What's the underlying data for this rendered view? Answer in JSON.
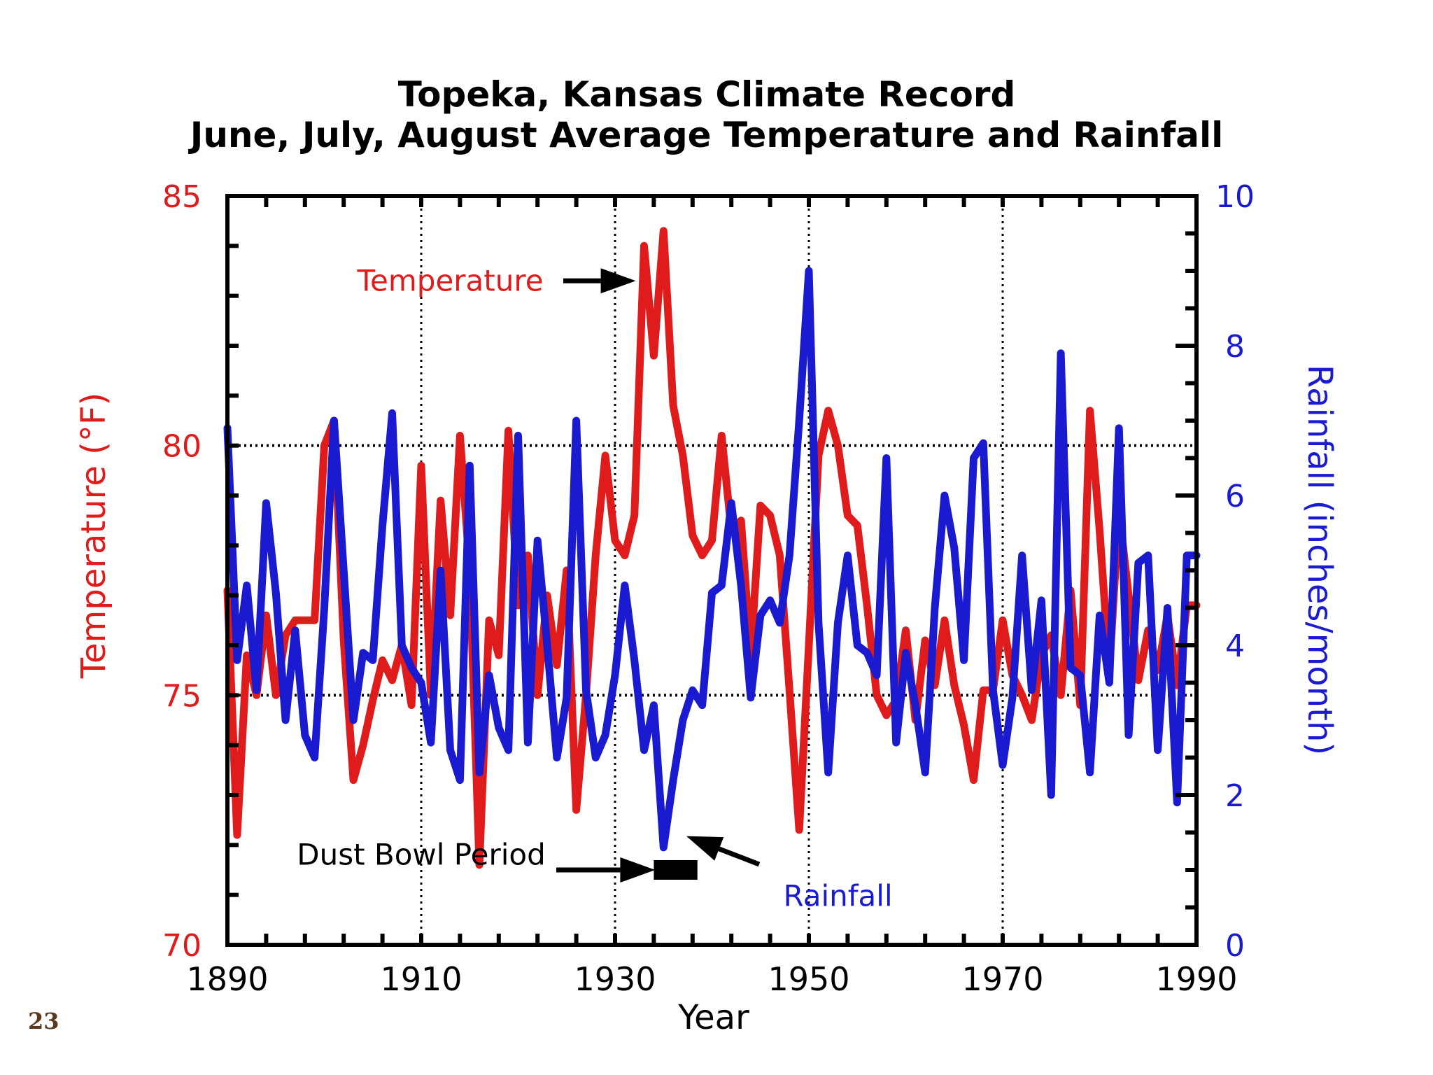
{
  "page": {
    "slide_number": "23"
  },
  "colors": {
    "temperature": "#e01b1b",
    "rainfall": "#1a1ad0",
    "axis": "#000000",
    "annotation": "#000000"
  },
  "chart_data": {
    "type": "line",
    "title": "Topeka, Kansas Climate Record",
    "subtitle": "June, July, August Average Temperature and Rainfall",
    "xlabel": "Year",
    "ylabel_left": "Temperature (°F)",
    "ylabel_right": "Rainfall (inches/month)",
    "xlim": [
      1890,
      1990
    ],
    "ylim_left": [
      70,
      85
    ],
    "ylim_right": [
      0,
      10
    ],
    "x_ticks": [
      "1890",
      "1910",
      "1930",
      "1950",
      "1970",
      "1990"
    ],
    "y_ticks_left": [
      "70",
      "75",
      "80",
      "85"
    ],
    "y_ticks_right": [
      "0",
      "2",
      "4",
      "6",
      "8",
      "10"
    ],
    "grid": "dotted at major ticks",
    "annotations": [
      {
        "text": "Temperature",
        "x": 1913,
        "y_temp": 83.3,
        "arrow_to": [
          1932.5,
          83.3
        ]
      },
      {
        "text": "Rainfall",
        "x": 1953,
        "y_rain": 0.65,
        "arrow_to": [
          1936.5,
          1.45
        ]
      },
      {
        "text": "Dust Bowl Period",
        "x": 1910,
        "y_temp": 71.8,
        "arrow_to": [
          1934,
          71.5
        ],
        "bar": [
          1934,
          1938.5
        ]
      }
    ],
    "series": [
      {
        "name": "Temperature",
        "axis": "left",
        "x": [
          1890,
          1891,
          1892,
          1893,
          1894,
          1895,
          1896,
          1897,
          1898,
          1899,
          1900,
          1901,
          1902,
          1903,
          1904,
          1905,
          1906,
          1907,
          1908,
          1909,
          1910,
          1911,
          1912,
          1913,
          1914,
          1915,
          1916,
          1917,
          1918,
          1919,
          1920,
          1921,
          1922,
          1923,
          1924,
          1925,
          1926,
          1927,
          1928,
          1929,
          1930,
          1931,
          1932,
          1933,
          1934,
          1935,
          1936,
          1937,
          1938,
          1939,
          1940,
          1941,
          1942,
          1943,
          1944,
          1945,
          1946,
          1947,
          1948,
          1949,
          1950,
          1951,
          1952,
          1953,
          1954,
          1955,
          1956,
          1957,
          1958,
          1959,
          1960,
          1961,
          1962,
          1963,
          1964,
          1965,
          1966,
          1967,
          1968,
          1969,
          1970,
          1971,
          1972,
          1973,
          1974,
          1975,
          1976,
          1977,
          1978,
          1979,
          1980,
          1981,
          1982,
          1983,
          1984,
          1985,
          1986,
          1987,
          1988,
          1989,
          1990
        ],
        "values": [
          77.1,
          72.2,
          75.8,
          75.0,
          76.6,
          75.0,
          76.2,
          76.5,
          76.5,
          76.5,
          80.0,
          80.5,
          76.1,
          73.3,
          74.0,
          74.9,
          75.7,
          75.3,
          76.0,
          74.8,
          79.6,
          75.0,
          78.9,
          76.6,
          80.2,
          77.5,
          71.6,
          76.5,
          75.8,
          80.3,
          76.8,
          77.8,
          75.0,
          77.0,
          75.6,
          77.5,
          72.7,
          75.0,
          77.8,
          79.8,
          78.1,
          77.8,
          78.6,
          84.0,
          81.8,
          84.3,
          80.8,
          79.8,
          78.2,
          77.8,
          78.1,
          80.2,
          78.3,
          78.5,
          75.8,
          78.8,
          78.6,
          77.8,
          75.1,
          72.3,
          76.0,
          79.8,
          80.7,
          80.0,
          78.6,
          78.4,
          76.8,
          75.0,
          74.6,
          74.9,
          76.3,
          74.5,
          76.1,
          75.2,
          76.5,
          75.2,
          74.4,
          73.3,
          75.1,
          75.1,
          76.5,
          75.4,
          75.0,
          74.5,
          75.8,
          76.2,
          75.0,
          77.1,
          74.8,
          80.7,
          78.3,
          75.5,
          78.7,
          77.0,
          75.3,
          76.3,
          75.5,
          76.6,
          75.2,
          76.8,
          76.8
        ]
      },
      {
        "name": "Rainfall",
        "axis": "right",
        "x": [
          1890,
          1891,
          1892,
          1893,
          1894,
          1895,
          1896,
          1897,
          1898,
          1899,
          1900,
          1901,
          1902,
          1903,
          1904,
          1905,
          1906,
          1907,
          1908,
          1909,
          1910,
          1911,
          1912,
          1913,
          1914,
          1915,
          1916,
          1917,
          1918,
          1919,
          1920,
          1921,
          1922,
          1923,
          1924,
          1925,
          1926,
          1927,
          1928,
          1929,
          1930,
          1931,
          1932,
          1933,
          1934,
          1935,
          1936,
          1937,
          1938,
          1939,
          1940,
          1941,
          1942,
          1943,
          1944,
          1945,
          1946,
          1947,
          1948,
          1949,
          1950,
          1951,
          1952,
          1953,
          1954,
          1955,
          1956,
          1957,
          1958,
          1959,
          1960,
          1961,
          1962,
          1963,
          1964,
          1965,
          1966,
          1967,
          1968,
          1969,
          1970,
          1971,
          1972,
          1973,
          1974,
          1975,
          1976,
          1977,
          1978,
          1979,
          1980,
          1981,
          1982,
          1983,
          1984,
          1985,
          1986,
          1987,
          1988,
          1989,
          1990
        ],
        "values": [
          6.9,
          3.8,
          4.8,
          3.4,
          5.9,
          4.7,
          3.0,
          4.2,
          2.8,
          2.5,
          4.5,
          7.0,
          5.0,
          3.0,
          3.9,
          3.8,
          5.6,
          7.1,
          4.0,
          3.7,
          3.5,
          2.7,
          5.0,
          2.6,
          2.2,
          6.4,
          2.3,
          3.6,
          2.9,
          2.6,
          6.8,
          2.7,
          5.4,
          4.0,
          2.5,
          3.3,
          7.0,
          3.4,
          2.5,
          2.8,
          3.6,
          4.8,
          3.8,
          2.6,
          3.2,
          1.3,
          2.2,
          3.0,
          3.4,
          3.2,
          4.7,
          4.8,
          5.9,
          4.8,
          3.3,
          4.4,
          4.6,
          4.3,
          5.2,
          7.0,
          9.0,
          4.3,
          2.3,
          4.3,
          5.2,
          4.0,
          3.9,
          3.6,
          6.5,
          2.7,
          3.9,
          3.2,
          2.3,
          4.5,
          6.0,
          5.3,
          3.8,
          6.5,
          6.7,
          3.4,
          2.4,
          3.3,
          5.2,
          3.4,
          4.6,
          2.0,
          7.9,
          3.7,
          3.6,
          2.3,
          4.4,
          3.5,
          6.9,
          2.8,
          5.1,
          5.2,
          2.6,
          4.5,
          1.9,
          5.2,
          5.2
        ]
      }
    ]
  }
}
